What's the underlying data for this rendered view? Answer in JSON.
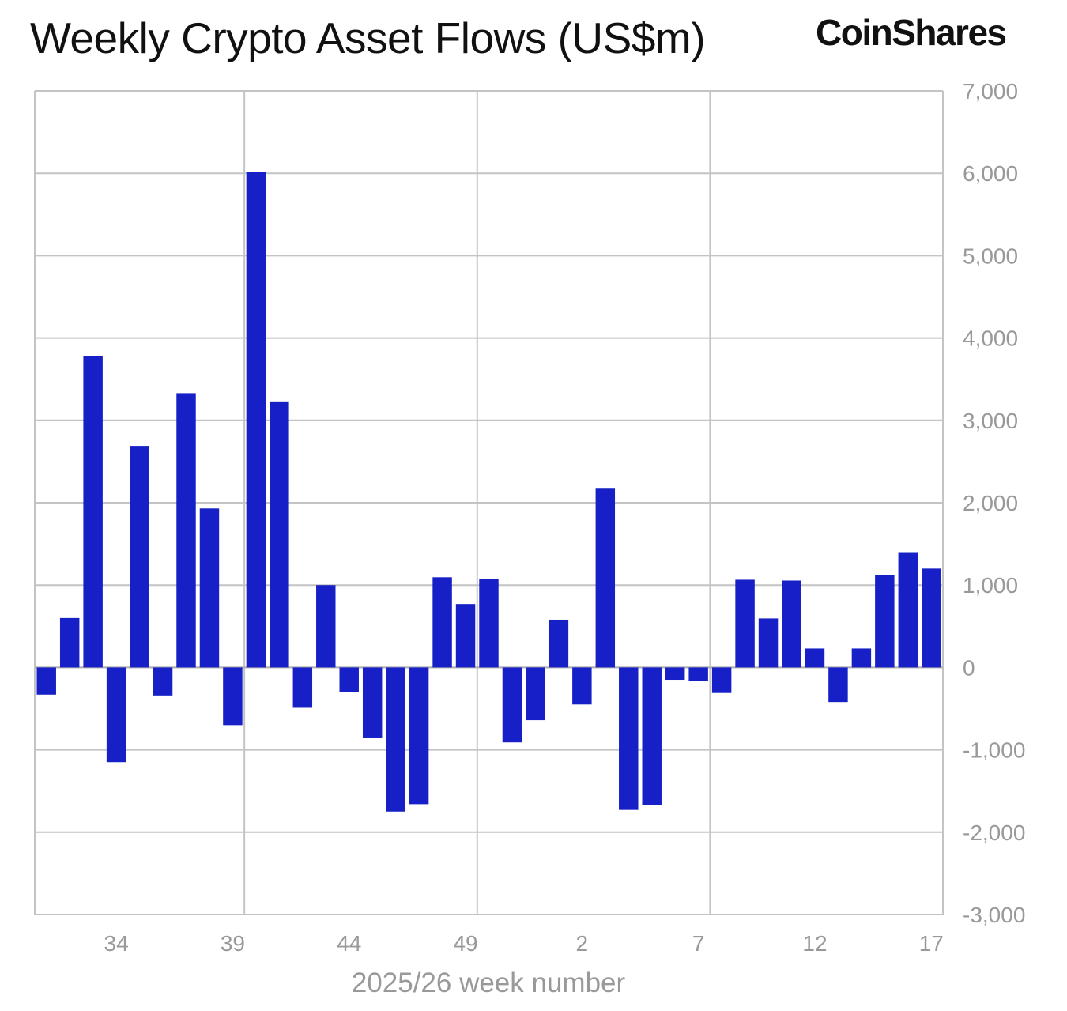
{
  "header": {
    "title": "Weekly Crypto Asset Flows (US$m)",
    "logo": "CoinShares"
  },
  "chart_data": {
    "type": "bar",
    "title": "Weekly Crypto Asset Flows (US$m)",
    "xlabel": "2025/26 week number",
    "ylabel": "",
    "ylim": [
      -3000,
      7000
    ],
    "yticks": [
      7000,
      6000,
      5000,
      4000,
      3000,
      2000,
      1000,
      0,
      -1000,
      -2000,
      -3000
    ],
    "ytick_labels": [
      "7,000",
      "6,000",
      "5,000",
      "4,000",
      "3,000",
      "2,000",
      "1,000",
      "0",
      "-1,000",
      "-2,000",
      "-3,000"
    ],
    "xtick_labels": [
      "34",
      "39",
      "44",
      "49",
      "2",
      "7",
      "12",
      "17"
    ],
    "grid": true,
    "bar_color": "#1620c6",
    "categories": [
      "31",
      "32",
      "33",
      "34",
      "35",
      "36",
      "37",
      "38",
      "39",
      "40",
      "41",
      "42",
      "43",
      "44",
      "45",
      "46",
      "47",
      "48",
      "49",
      "50",
      "51",
      "52",
      "1",
      "2",
      "3",
      "4",
      "5",
      "6",
      "7",
      "8",
      "9",
      "10",
      "11",
      "12",
      "13",
      "14",
      "15",
      "16",
      "17"
    ],
    "values": [
      -330,
      600,
      3780,
      -1150,
      2690,
      -340,
      3330,
      1930,
      -700,
      6020,
      3230,
      -490,
      1000,
      -300,
      -850,
      -1750,
      -1660,
      1095,
      770,
      1075,
      -910,
      -640,
      580,
      -450,
      2180,
      -1730,
      -1675,
      -150,
      -160,
      -310,
      1065,
      595,
      1055,
      230,
      -420,
      230,
      1125,
      1400,
      1200
    ]
  }
}
